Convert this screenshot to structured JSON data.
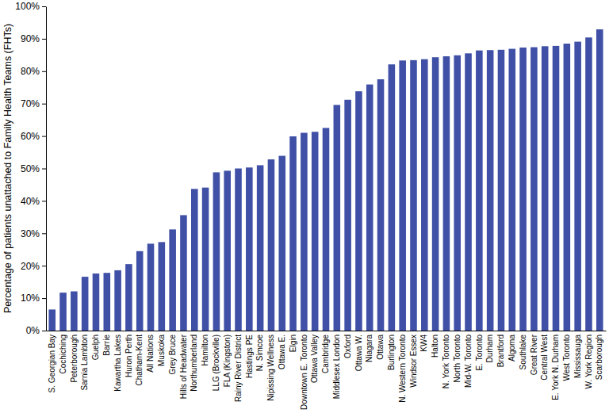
{
  "chart_data": {
    "type": "bar",
    "y_label": "Percentage of patients unattached to Family Health Teams (FHTs)",
    "categories": [
      "S. Georgian Bay",
      "Cochiching",
      "Peterborough",
      "Sarnia Lambton",
      "Guelph",
      "Barrie",
      "Kawartha Lakes",
      "Huron Perth",
      "Chatham-Kent",
      "All Nations",
      "Muskoka",
      "Grey Bruce",
      "Hills of Headwater",
      "Northumberland",
      "Hamilton",
      "LLG (Brockville)",
      "FLA (Kingston)",
      "Rainy River District",
      "Hastings PE",
      "N. Simcoe",
      "Nipissing Wellness",
      "Ottawa E.",
      "Elgin",
      "Downtown E. Toronto",
      "Ottawa Valley",
      "Cambridge",
      "Middlesex London",
      "Oxford",
      "Ottawa W.",
      "Niagara",
      "Ottawa",
      "Burlington",
      "N. Western Toronto",
      "Windsor Essex",
      "KW4",
      "Halton",
      "N. York Toronto",
      "North Toronto",
      "Mid-W. Toronto",
      "E. Toronto",
      "Durham",
      "Brantford",
      "Algoma",
      "Southlake",
      "Great River",
      "Central West",
      "E. York N. Durham",
      "West Toronto",
      "Mississauga",
      "W. York Region",
      "Scarborough"
    ],
    "values": [
      6.5,
      11.7,
      12.1,
      16.6,
      17.6,
      17.8,
      18.6,
      20.5,
      24.5,
      26.8,
      27.3,
      31.2,
      35.6,
      43.7,
      44.1,
      48.8,
      49.3,
      50.0,
      50.3,
      51.0,
      52.8,
      53.9,
      59.9,
      61.0,
      61.3,
      62.5,
      69.6,
      71.2,
      73.8,
      75.9,
      77.5,
      82.1,
      83.3,
      83.4,
      83.7,
      84.3,
      84.6,
      84.9,
      85.5,
      86.4,
      86.5,
      86.6,
      86.9,
      87.3,
      87.4,
      87.7,
      87.8,
      88.5,
      89.1,
      90.4,
      92.9
    ],
    "color": "#3f50a6",
    "ylim": [
      0,
      100
    ],
    "yticks": [
      {
        "value": 0,
        "label": "0%"
      },
      {
        "value": 10,
        "label": "10%"
      },
      {
        "value": 20,
        "label": "20%"
      },
      {
        "value": 30,
        "label": "30%"
      },
      {
        "value": 40,
        "label": "40%"
      },
      {
        "value": 50,
        "label": "50%"
      },
      {
        "value": 60,
        "label": "60%"
      },
      {
        "value": 70,
        "label": "70%"
      },
      {
        "value": 80,
        "label": "80%"
      },
      {
        "value": 90,
        "label": "90%"
      },
      {
        "value": 100,
        "label": "100%"
      }
    ],
    "grid": false
  }
}
